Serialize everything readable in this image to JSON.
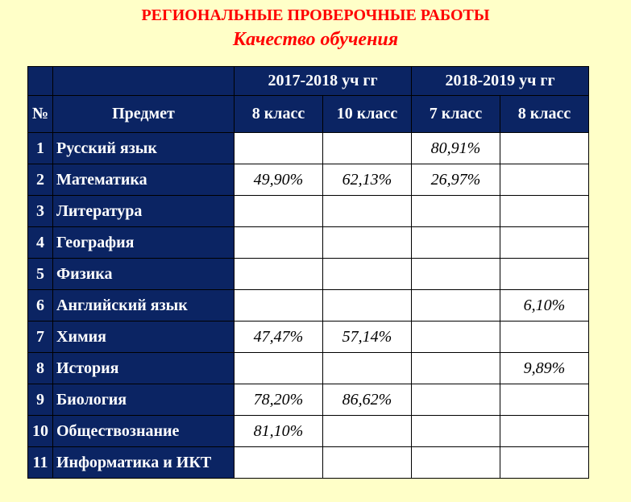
{
  "title": "РЕГИОНАЛЬНЫЕ ПРОВЕРОЧНЫЕ РАБОТЫ",
  "subtitle": "Качество обучения",
  "table": {
    "col_num": "№",
    "col_subject": "Предмет",
    "year_groups": [
      {
        "label": "2017-2018 уч гг"
      },
      {
        "label": "2018-2019 уч гг"
      }
    ],
    "grades": [
      {
        "label": "8 класс"
      },
      {
        "label": "10 класс"
      },
      {
        "label": "7 класс"
      },
      {
        "label": "8 класс"
      }
    ],
    "rows": [
      {
        "num": "1",
        "subject": "Русский язык",
        "values": [
          "",
          "",
          "80,91%",
          ""
        ]
      },
      {
        "num": "2",
        "subject": "Математика",
        "values": [
          "49,90%",
          "62,13%",
          "26,97%",
          ""
        ]
      },
      {
        "num": "3",
        "subject": "Литература",
        "values": [
          "",
          "",
          "",
          ""
        ]
      },
      {
        "num": "4",
        "subject": "География",
        "values": [
          "",
          "",
          "",
          ""
        ]
      },
      {
        "num": "5",
        "subject": "Физика",
        "values": [
          "",
          "",
          "",
          ""
        ]
      },
      {
        "num": "6",
        "subject": "Английский язык",
        "values": [
          "",
          "",
          "",
          "6,10%"
        ]
      },
      {
        "num": "7",
        "subject": "Химия",
        "values": [
          "47,47%",
          "57,14%",
          "",
          ""
        ]
      },
      {
        "num": "8",
        "subject": "История",
        "values": [
          "",
          "",
          "",
          "9,89%"
        ]
      },
      {
        "num": "9",
        "subject": "Биология",
        "values": [
          "78,20%",
          "86,62%",
          "",
          ""
        ]
      },
      {
        "num": "10",
        "subject": "Обществознание",
        "values": [
          "81,10%",
          "",
          "",
          ""
        ]
      },
      {
        "num": "11",
        "subject": "Информатика и ИКТ",
        "values": [
          "",
          "",
          "",
          ""
        ]
      }
    ]
  }
}
